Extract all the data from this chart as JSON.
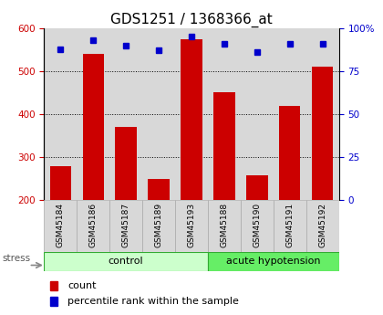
{
  "title": "GDS1251 / 1368366_at",
  "samples": [
    "GSM45184",
    "GSM45186",
    "GSM45187",
    "GSM45189",
    "GSM45193",
    "GSM45188",
    "GSM45190",
    "GSM45191",
    "GSM45192"
  ],
  "counts": [
    278,
    540,
    370,
    250,
    575,
    452,
    258,
    420,
    510
  ],
  "percentiles": [
    88,
    93,
    90,
    87,
    95,
    91,
    86,
    91,
    91
  ],
  "n_control": 5,
  "n_acute": 4,
  "group_colors": {
    "control": "#ccffcc",
    "acute hypotension": "#66ee66"
  },
  "bar_color": "#cc0000",
  "dot_color": "#0000cc",
  "ylim_left": [
    200,
    600
  ],
  "ylim_right": [
    0,
    100
  ],
  "yticks_left": [
    200,
    300,
    400,
    500,
    600
  ],
  "yticks_right": [
    0,
    25,
    50,
    75,
    100
  ],
  "plot_bg_color": "#d8d8d8",
  "sample_bg_color": "#d8d8d8",
  "stress_label": "stress",
  "legend_count": "count",
  "legend_percentile": "percentile rank within the sample",
  "title_fontsize": 11,
  "tick_fontsize": 7.5,
  "sample_fontsize": 6.5,
  "group_fontsize": 8,
  "legend_fontsize": 8
}
